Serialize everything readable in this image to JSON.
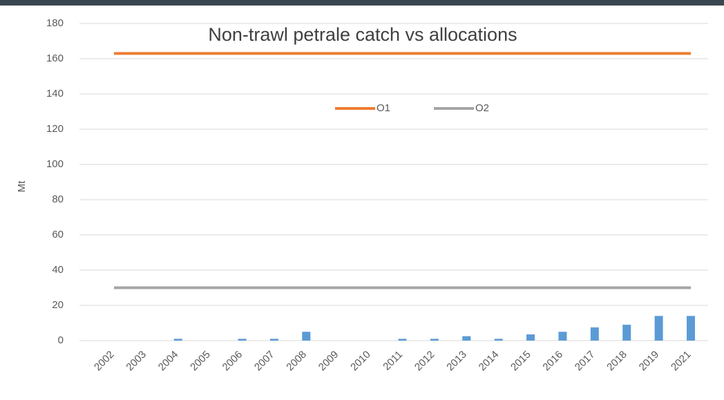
{
  "chart_data": {
    "type": "bar-line",
    "title": "Non-trawl petrale catch vs allocations",
    "y_label": "Mt",
    "categories": [
      "2002",
      "2003",
      "2004",
      "2005",
      "2006",
      "2007",
      "2008",
      "2009",
      "2010",
      "2011",
      "2012",
      "2013",
      "2014",
      "2015",
      "2016",
      "2017",
      "2018",
      "2019",
      "2021"
    ],
    "bars": {
      "color": "#5b9bd5",
      "values": [
        0,
        0,
        1,
        0,
        1,
        1,
        5,
        0,
        0,
        1,
        1,
        2.5,
        1,
        3.5,
        5,
        7.5,
        9,
        14,
        14
      ]
    },
    "series": [
      {
        "name": "O1",
        "color": "#ed7d31",
        "values": [
          163,
          163,
          163,
          163,
          163,
          163,
          163,
          163,
          163,
          163,
          163,
          163,
          163,
          163,
          163,
          163,
          163,
          163,
          163
        ]
      },
      {
        "name": "O2",
        "color": "#a5a5a5",
        "values": [
          30,
          30,
          30,
          30,
          30,
          30,
          30,
          30,
          30,
          30,
          30,
          30,
          30,
          30,
          30,
          30,
          30,
          30,
          30
        ]
      }
    ],
    "ylim": [
      0,
      180
    ],
    "yticks": [
      0,
      20,
      40,
      60,
      80,
      100,
      120,
      140,
      160,
      180
    ],
    "grid": true
  }
}
